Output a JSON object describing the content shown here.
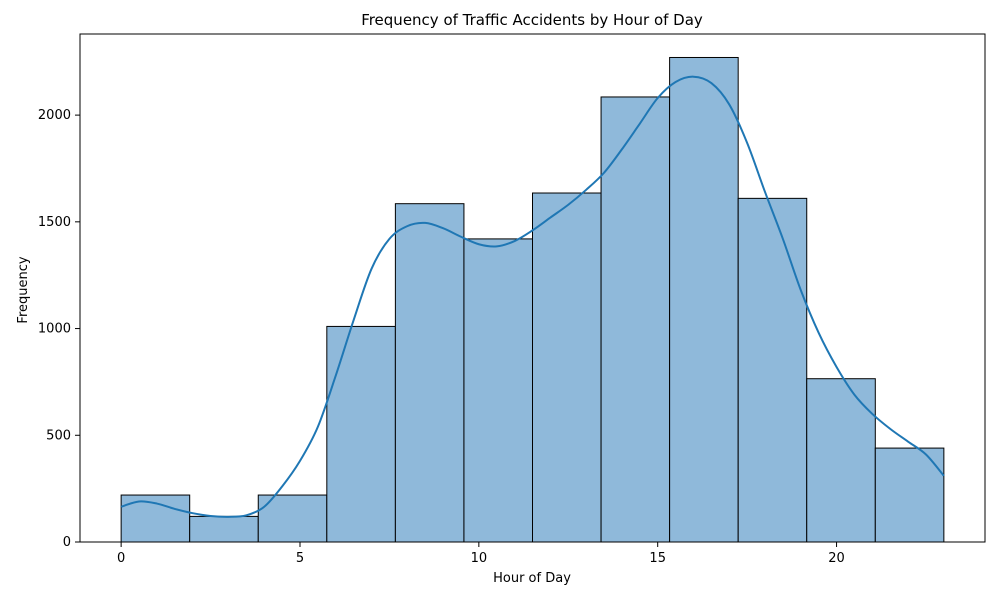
{
  "chart_data": {
    "type": "bar",
    "title": "Frequency of Traffic Accidents by Hour of Day",
    "xlabel": "Hour of Day",
    "ylabel": "Frequency",
    "xlim": [
      -1.15,
      24.15
    ],
    "ylim": [
      0,
      2380
    ],
    "xticks": [
      0,
      5,
      10,
      15,
      20
    ],
    "yticks": [
      0,
      500,
      1000,
      1500,
      2000
    ],
    "bin_edges": [
      0,
      1.9167,
      3.8333,
      5.75,
      7.6667,
      9.5833,
      11.5,
      13.4167,
      15.3333,
      17.25,
      19.1667,
      21.0833,
      23
    ],
    "values": [
      220,
      120,
      220,
      1010,
      1585,
      1420,
      1635,
      2085,
      2270,
      1610,
      765,
      440
    ],
    "kde": {
      "x": [
        0,
        0.5,
        1,
        1.5,
        2,
        2.5,
        3,
        3.5,
        4,
        4.5,
        5,
        5.5,
        6,
        6.5,
        7,
        7.5,
        8,
        8.5,
        9,
        9.5,
        10,
        10.5,
        11,
        11.5,
        12,
        12.5,
        13,
        13.5,
        14,
        14.5,
        15,
        15.5,
        16,
        16.5,
        17,
        17.5,
        18,
        18.5,
        19,
        19.5,
        20,
        20.5,
        21,
        21.5,
        22,
        22.5,
        23
      ],
      "y": [
        165,
        190,
        180,
        155,
        135,
        122,
        118,
        125,
        165,
        260,
        380,
        540,
        780,
        1040,
        1280,
        1420,
        1480,
        1495,
        1470,
        1430,
        1395,
        1385,
        1410,
        1460,
        1520,
        1580,
        1650,
        1730,
        1840,
        1960,
        2080,
        2155,
        2180,
        2150,
        2050,
        1870,
        1640,
        1420,
        1180,
        980,
        820,
        690,
        600,
        530,
        470,
        410,
        310
      ]
    },
    "colors": {
      "bar_fill": "#8fb9da",
      "bar_edge": "#000000",
      "kde_line": "#1f77b4"
    },
    "grid": false,
    "legend": false
  }
}
